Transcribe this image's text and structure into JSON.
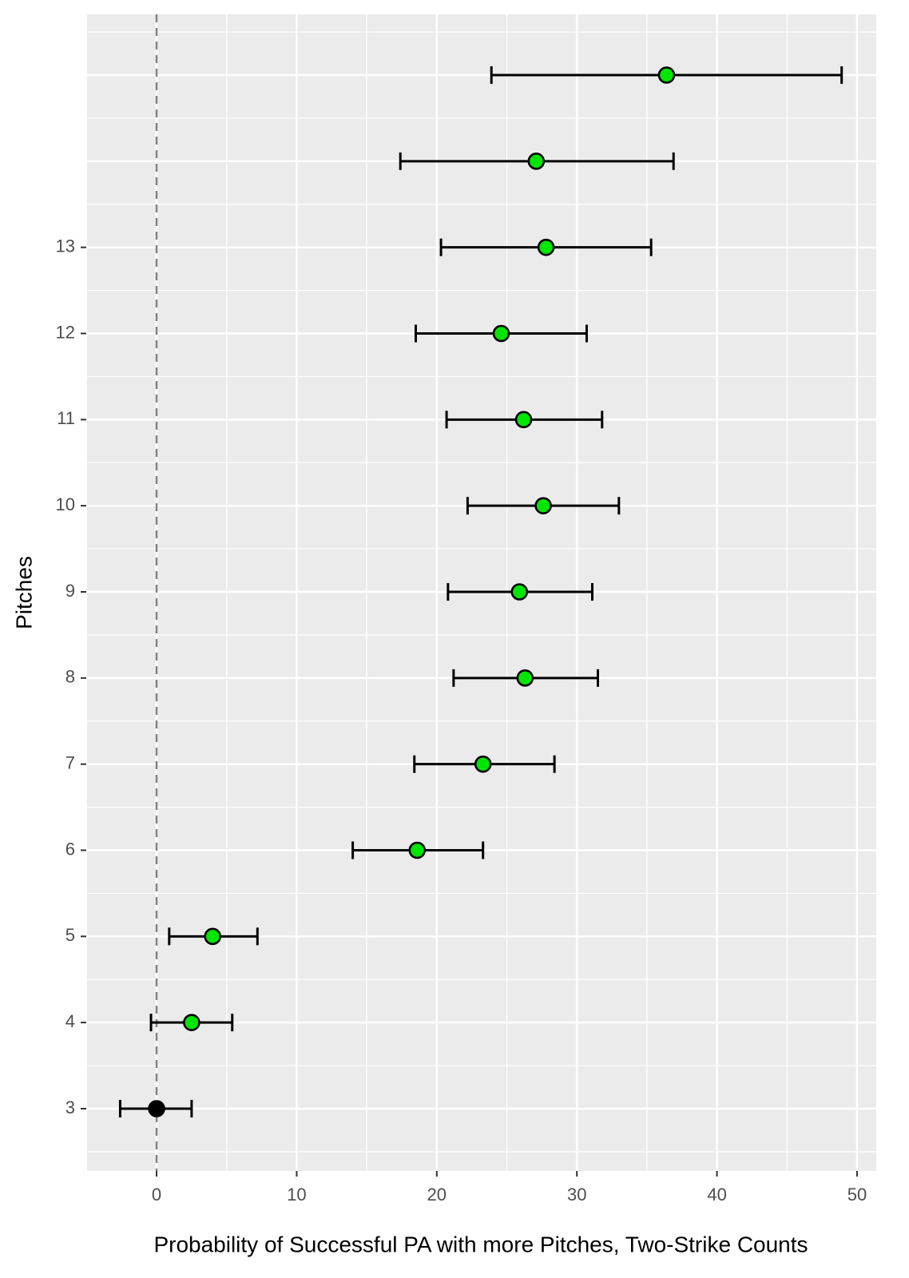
{
  "chart_data": {
    "type": "errorbar",
    "x_label": "Probability of Successful PA with more Pitches, Two-Strike Counts",
    "y_label": "Pitches",
    "categories": [
      "3",
      "4",
      "5",
      "6",
      "7",
      "8",
      "9",
      "10",
      "11",
      "12",
      "13",
      null,
      null
    ],
    "values": [
      0,
      2.5,
      4.0,
      18.6,
      23.3,
      26.3,
      25.9,
      27.6,
      26.2,
      24.6,
      27.8,
      27.1,
      36.4
    ],
    "low": [
      -2.6,
      -0.4,
      0.9,
      14.0,
      18.4,
      21.2,
      20.8,
      22.2,
      20.7,
      18.5,
      20.3,
      17.4,
      23.9
    ],
    "high": [
      2.5,
      5.4,
      7.2,
      23.3,
      28.4,
      31.5,
      31.1,
      33.0,
      31.8,
      30.7,
      35.3,
      36.9,
      48.9
    ],
    "colors": [
      "#000000",
      "#00e600",
      "#00e600",
      "#00e600",
      "#00e600",
      "#00e600",
      "#00e600",
      "#00e600",
      "#00e600",
      "#00e600",
      "#00e600",
      "#00e600",
      "#00e600"
    ],
    "xlim": [
      -5.02,
      51.37
    ],
    "xticks": [
      0,
      10,
      20,
      30,
      40,
      50
    ],
    "reference_line": 0,
    "grid": true,
    "minor_grid": true
  }
}
